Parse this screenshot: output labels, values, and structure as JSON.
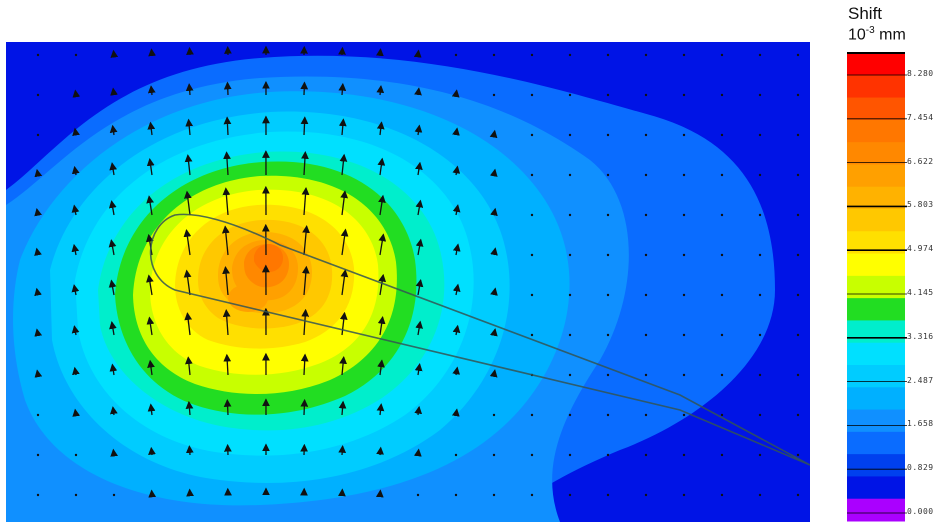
{
  "chart_data": {
    "type": "heatmap",
    "subtype": "contour-with-displacement-vectors",
    "colorbar": {
      "title": "Shift",
      "unit_base": "10",
      "unit_exp": "-3",
      "unit_suffix": " mm",
      "levels": [
        "#ff0000",
        "#ff3300",
        "#ff5500",
        "#ff7700",
        "#ff8800",
        "#ffa000",
        "#ffb200",
        "#ffc800",
        "#ffe000",
        "#ffff00",
        "#c8ff00",
        "#22dd22",
        "#00eecc",
        "#00e0ff",
        "#00ccff",
        "#00b0ff",
        "#1090ff",
        "#0a6cff",
        "#0040ee",
        "#0014e6",
        "#aa00ff"
      ],
      "tick_labels": [
        "8.280",
        "7.454",
        "6.622",
        "5.803",
        "4.974",
        "4.145",
        "3.316",
        "2.487",
        "1.658",
        "0.829",
        "0.000"
      ],
      "range": [
        0,
        8.28
      ]
    },
    "vector_field": {
      "direction": "upward, radiating from peak"
    },
    "peak_color": "#ff7700",
    "background_color": "#0014e6"
  }
}
